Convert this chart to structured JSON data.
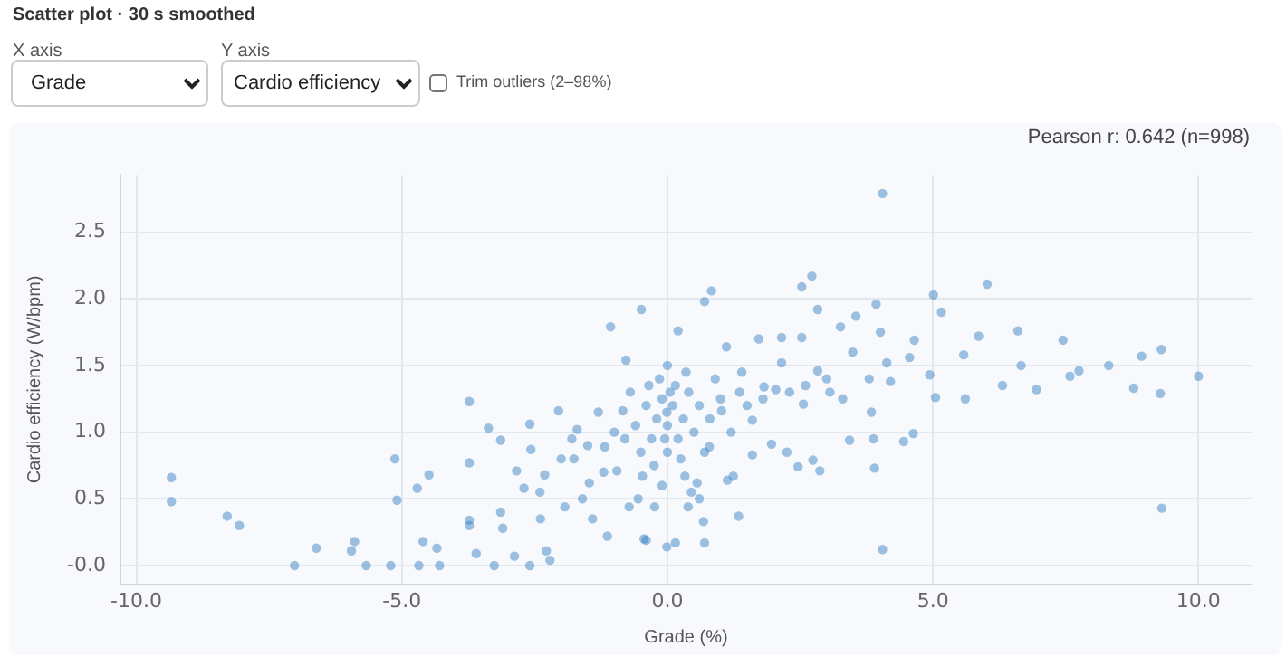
{
  "chart_data": {
    "type": "scatter",
    "title": "Scatter plot · 30 s smoothed",
    "xlabel": "Grade (%)",
    "ylabel": "Cardio efficiency (W/bpm)",
    "annotations": [
      "X axis",
      "Grade",
      "Y axis",
      "Cardio efficiency",
      "Trim outliers (2–98%)",
      "Pearson r: 0.642 (n=998)"
    ],
    "xlim": [
      -10.3,
      11.0
    ],
    "ylim": [
      -0.14,
      2.93
    ],
    "xticks": [
      {
        "value": -10,
        "label": "-10.0"
      },
      {
        "value": -5,
        "label": "-5.0"
      },
      {
        "value": 0,
        "label": "0.0"
      },
      {
        "value": 5,
        "label": "5.0"
      },
      {
        "value": 10,
        "label": "10.0"
      }
    ],
    "yticks": [
      {
        "value": 0,
        "label": "-0.0"
      },
      {
        "value": 0.5,
        "label": "0.5"
      },
      {
        "value": 1,
        "label": "1.0"
      },
      {
        "value": 1.5,
        "label": "1.5"
      },
      {
        "value": 2,
        "label": "2.0"
      },
      {
        "value": 2.5,
        "label": "2.5"
      }
    ],
    "grid": true,
    "legend": false,
    "marker": "circle",
    "series": [
      {
        "color": "#3d85c6",
        "x": [
          -9.34,
          -9.34,
          -8.29,
          -8.06,
          -7.02,
          -6.61,
          -5.95,
          -5.89,
          -5.67,
          -5.21,
          -5.13,
          -5.09,
          -4.71,
          -4.49,
          -4.6,
          -4.68,
          -4.34,
          -4.29,
          -3.73,
          -3.73,
          -3.73,
          -3.73,
          -3.6,
          -3.37,
          -3.14,
          -3.14,
          -3.1,
          -3.26,
          -2.84,
          -2.7,
          -2.59,
          -2.57,
          -2.59,
          -2.88,
          -2.39,
          -2.28,
          -2.21,
          -2.31,
          -2.05,
          -1.93,
          -1.7,
          -1.76,
          -1.47,
          -1.41,
          -1.18,
          -1.13,
          -1.07,
          -0.78,
          -0.84,
          -0.95,
          -0.72,
          -0.49,
          -0.44,
          4.05,
          4.05,
          2.72,
          2.53,
          0.83,
          0.7,
          6.02,
          5.01,
          5.16,
          3.93,
          2.83,
          3.55,
          3.26,
          0.2,
          6.6,
          7.45,
          9.3,
          8.93,
          10.0,
          9.28,
          9.31,
          8.78,
          8.31,
          7.75,
          7.58,
          6.95,
          6.66,
          6.31,
          5.86,
          5.58,
          5.61,
          5.05,
          4.94,
          4.65,
          4.56,
          4.63,
          4.45,
          3.9,
          3.88,
          3.84,
          3.43,
          3.49,
          4.01,
          4.13,
          2.87,
          2.74,
          2.46,
          2.25,
          1.96,
          1.6,
          1.34,
          0.7,
          0.68,
          -0.01,
          -0.4,
          0.15,
          1.13,
          1.24,
          2.04,
          2.56,
          2.83,
          3.06,
          2.15,
          1.72,
          1.11,
          2.53,
          2.15,
          1.82,
          1.36,
          1.6,
          1.02,
          0.79,
          0.56,
          0.33,
          0.39,
          -0.24,
          -0.47,
          -0.01,
          -0.2,
          0,
          0.1,
          -0.1,
          0.2,
          -0.3,
          0.3,
          -0.4,
          0.4,
          -0.5,
          0.5,
          -0.6,
          0.6,
          0.15,
          -0.15,
          0,
          0.25,
          -0.25,
          0.7,
          -0.7,
          0.8,
          -0.8,
          1.0,
          -1.0,
          1.2,
          -1.2,
          0,
          0.05,
          -0.05,
          0.35,
          -0.35,
          1.5,
          1.8,
          2.3,
          2.6,
          3.0,
          3.3,
          3.8,
          4.2,
          1.4,
          0.9,
          -1.5,
          -1.8,
          -2.0,
          -1.3,
          0.45,
          -0.1,
          0.6,
          -0.55,
          -1.6,
          -2.4
        ],
        "values": [
          0.66,
          0.48,
          0.37,
          0.3,
          0.0,
          0.13,
          0.11,
          0.18,
          0.0,
          0.0,
          0.8,
          0.49,
          0.58,
          0.68,
          0.18,
          0.0,
          0.13,
          0.0,
          1.23,
          0.77,
          0.34,
          0.3,
          0.09,
          1.03,
          0.94,
          0.4,
          0.28,
          0.0,
          0.71,
          0.58,
          1.06,
          0.87,
          0.0,
          0.07,
          0.35,
          0.11,
          0.04,
          0.68,
          1.16,
          0.44,
          1.02,
          0.8,
          0.62,
          0.35,
          0.89,
          0.22,
          1.79,
          1.54,
          1.16,
          0.71,
          0.44,
          1.92,
          0.2,
          2.79,
          0.12,
          2.17,
          2.09,
          2.06,
          1.98,
          2.11,
          2.03,
          1.9,
          1.96,
          1.92,
          1.87,
          1.79,
          1.76,
          1.76,
          1.69,
          1.62,
          1.57,
          1.42,
          1.29,
          0.43,
          1.33,
          1.5,
          1.46,
          1.42,
          1.32,
          1.5,
          1.35,
          1.72,
          1.58,
          1.25,
          1.26,
          1.43,
          1.69,
          1.56,
          0.99,
          0.93,
          0.73,
          0.95,
          1.15,
          0.94,
          1.6,
          1.75,
          1.52,
          0.71,
          0.79,
          0.74,
          0.85,
          0.91,
          0.83,
          0.37,
          0.17,
          0.33,
          0.14,
          0.19,
          0.17,
          0.64,
          0.67,
          1.32,
          1.21,
          1.46,
          1.3,
          1.52,
          1.7,
          1.64,
          1.71,
          1.71,
          1.34,
          1.3,
          1.09,
          1.16,
          0.89,
          0.62,
          0.67,
          0.44,
          0.44,
          0.67,
          1.15,
          1.1,
          1.05,
          1.2,
          1.25,
          0.95,
          0.95,
          1.1,
          1.2,
          1.3,
          0.85,
          1.0,
          1.05,
          1.2,
          1.35,
          1.4,
          0.85,
          0.8,
          0.75,
          0.85,
          1.3,
          1.1,
          0.95,
          1.25,
          1.0,
          1.0,
          0.7,
          1.5,
          1.3,
          0.95,
          1.45,
          1.35,
          1.2,
          1.25,
          1.3,
          1.35,
          1.4,
          1.25,
          1.4,
          1.38,
          1.45,
          1.4,
          0.9,
          0.95,
          0.8,
          1.15,
          0.55,
          0.6,
          0.5,
          0.5,
          0.5,
          0.55
        ]
      }
    ]
  }
}
